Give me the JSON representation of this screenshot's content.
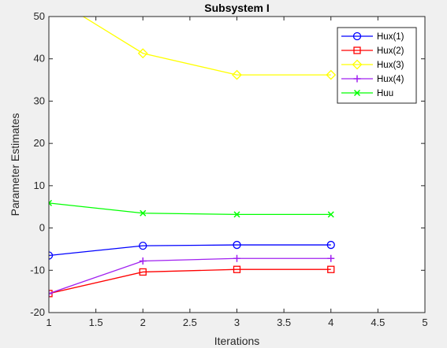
{
  "chart_data": {
    "type": "line",
    "title": "Subsystem I",
    "xlabel": "Iterations",
    "ylabel": "Parameter Estimates",
    "xlim": [
      1,
      5
    ],
    "ylim": [
      -20,
      50
    ],
    "xticks": [
      1,
      1.5,
      2,
      2.5,
      3,
      3.5,
      4,
      4.5,
      5
    ],
    "xtick_labels": [
      "1",
      "1.5",
      "2",
      "2.5",
      "3",
      "3.5",
      "4",
      "4.5",
      "5"
    ],
    "yticks": [
      -20,
      -10,
      0,
      10,
      20,
      30,
      40,
      50
    ],
    "ytick_labels": [
      "-20",
      "-10",
      "0",
      "10",
      "20",
      "30",
      "40",
      "50"
    ],
    "grid": false,
    "legend_position": "top-right",
    "x": [
      1,
      2,
      3,
      4
    ],
    "series": [
      {
        "name": "Hux(1)",
        "color": "#0000ff",
        "marker": "circle",
        "values": [
          -6.5,
          -4.2,
          -4.0,
          -4.0
        ]
      },
      {
        "name": "Hux(2)",
        "color": "#ff0000",
        "marker": "square",
        "values": [
          -15.5,
          -10.4,
          -9.8,
          -9.8
        ]
      },
      {
        "name": "Hux(3)",
        "color": "#ffff00",
        "marker": "diamond",
        "values": [
          55.0,
          41.3,
          36.2,
          36.2
        ]
      },
      {
        "name": "Hux(4)",
        "color": "#a020f0",
        "marker": "plus",
        "values": [
          -15.5,
          -7.8,
          -7.2,
          -7.2
        ]
      },
      {
        "name": "Huu",
        "color": "#00ff00",
        "marker": "x",
        "values": [
          5.9,
          3.5,
          3.2,
          3.2
        ]
      }
    ]
  }
}
